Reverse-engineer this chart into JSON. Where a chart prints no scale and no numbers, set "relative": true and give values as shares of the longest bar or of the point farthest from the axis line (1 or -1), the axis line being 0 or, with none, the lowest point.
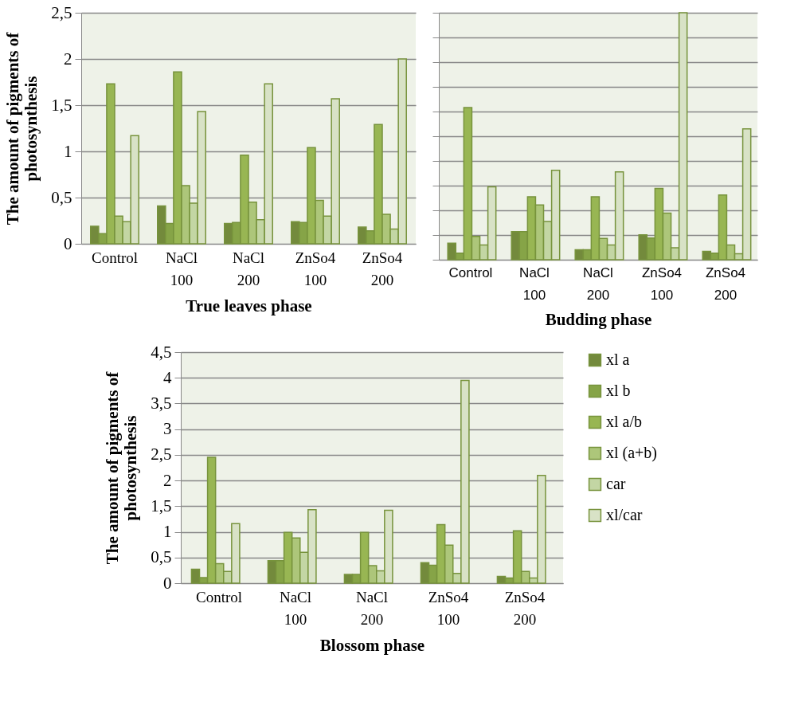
{
  "chart_data": [
    {
      "type": "bar",
      "xlabel": "True leaves phase",
      "ylabel": "The amount of pigments of photosynthesis",
      "categories": [
        "Control",
        "NaCl 100",
        "NaCl 200",
        "ZnSo4 100",
        "ZnSo4 200"
      ],
      "ylim": [
        0,
        2.5
      ],
      "yticks": [
        0,
        {
          "value": 0.5,
          "label": "0,5"
        },
        1,
        {
          "value": 1.5,
          "label": "1,5"
        },
        2,
        {
          "value": 2.5,
          "label": "2,5"
        }
      ],
      "grid": "y",
      "legend": false,
      "series": [
        {
          "color": "#738a3c",
          "values": [
            0.19,
            0.41,
            0.22,
            0.24,
            0.18
          ]
        },
        {
          "color": "#86a447",
          "values": [
            0.11,
            0.22,
            0.23,
            0.23,
            0.14
          ]
        },
        {
          "color": "#98b653",
          "values": [
            1.73,
            1.86,
            0.96,
            1.04,
            1.29
          ]
        },
        {
          "color": "#adc67a",
          "values": [
            0.3,
            0.63,
            0.45,
            0.47,
            0.32
          ]
        },
        {
          "color": "#c3d6a4",
          "values": [
            0.24,
            0.44,
            0.26,
            0.3,
            0.16
          ]
        },
        {
          "color": "#d8e2c6",
          "values": [
            1.17,
            1.43,
            1.73,
            1.57,
            2.0
          ]
        }
      ]
    },
    {
      "type": "bar",
      "xlabel": "Budding phase",
      "categories": [
        "Control",
        "NaCl 100",
        "NaCl 200",
        "ZnSo4 100",
        "ZnSo4 200"
      ],
      "relative": true,
      "grid": "y",
      "legend": false,
      "series": [
        {
          "color": "#738a3c",
          "values": [
            0.067,
            0.114,
            0.04,
            0.101,
            0.034
          ]
        },
        {
          "color": "#86a447",
          "values": [
            0.027,
            0.114,
            0.04,
            0.088,
            0.027
          ]
        },
        {
          "color": "#98b653",
          "values": [
            0.616,
            0.255,
            0.255,
            0.289,
            0.262
          ]
        },
        {
          "color": "#adc67a",
          "values": [
            0.094,
            0.222,
            0.086,
            0.189,
            0.06
          ]
        },
        {
          "color": "#c3d6a4",
          "values": [
            0.06,
            0.155,
            0.06,
            0.048,
            0.024
          ]
        },
        {
          "color": "#d8e2c6",
          "values": [
            0.295,
            0.362,
            0.356,
            1.0,
            0.53
          ]
        }
      ]
    },
    {
      "type": "bar",
      "xlabel": "Blossom phase",
      "ylabel": "The amount of pigments of photosynthesis",
      "categories": [
        "Control",
        "NaCl 100",
        "NaCl 200",
        "ZnSo4 100",
        "ZnSo4 200"
      ],
      "ylim": [
        0,
        4.5
      ],
      "yticks": [
        0,
        {
          "value": 0.5,
          "label": "0,5"
        },
        1,
        {
          "value": 1.5,
          "label": "1,5"
        },
        2,
        {
          "value": 2.5,
          "label": "2,5"
        },
        3,
        {
          "value": 3.5,
          "label": "3,5"
        },
        4,
        {
          "value": 4.5,
          "label": "4,5"
        }
      ],
      "grid": "y",
      "legend": "right",
      "series": [
        {
          "name": "xl a",
          "color": "#738a3c",
          "values": [
            0.27,
            0.44,
            0.17,
            0.4,
            0.13
          ]
        },
        {
          "name": "xl b",
          "color": "#86a447",
          "values": [
            0.11,
            0.44,
            0.17,
            0.35,
            0.1
          ]
        },
        {
          "name": "xl a/b",
          "color": "#98b653",
          "values": [
            2.45,
            0.99,
            0.99,
            1.14,
            1.02
          ]
        },
        {
          "name": "xl (a+b)",
          "color": "#adc67a",
          "values": [
            0.38,
            0.88,
            0.34,
            0.74,
            0.23
          ]
        },
        {
          "name": "car",
          "color": "#c3d6a4",
          "values": [
            0.23,
            0.6,
            0.24,
            0.19,
            0.1
          ]
        },
        {
          "name": "xl/car",
          "color": "#d8e2c6",
          "values": [
            1.16,
            1.43,
            1.42,
            3.95,
            2.1
          ]
        }
      ]
    }
  ]
}
